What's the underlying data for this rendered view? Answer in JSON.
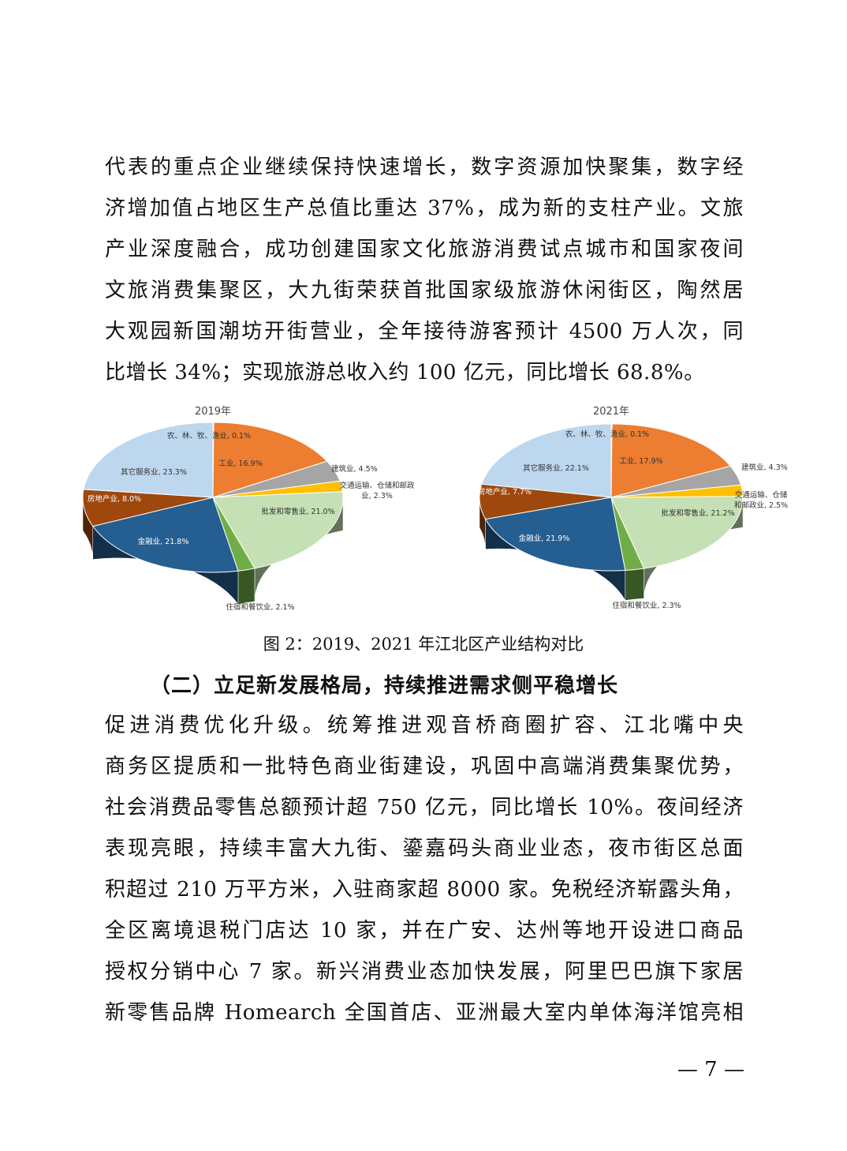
{
  "paragraph1": [
    "代表的重点企业继续保持快速增长，数字资源加快聚集，数字经",
    "济增加值占地区生产总值比重达 37%，成为新的支柱产业。文旅",
    "产业深度融合，成功创建国家文化旅游消费试点城市和国家夜间",
    "文旅消费集聚区，大九街荣获首批国家级旅游休闲街区，陶然居",
    "大观园新国潮坊开街营业，全年接待游客预计 4500 万人次，同",
    "比增长 34%；实现旅游总收入约 100 亿元，同比增长 68.8%。"
  ],
  "chart_data": [
    {
      "type": "pie",
      "title": "2019年",
      "labels": [
        "农、林、牧、渔业, 0.1%",
        "工业, 16.9%",
        "建筑业, 4.5%",
        "交通运输、仓储和邮政业, 2.3%",
        "批发和零售业, 21.0%",
        "住宿和餐饮业, 2.1%",
        "金融业, 21.8%",
        "房地产业, 8.0%",
        "其它服务业, 23.3%"
      ],
      "categories": [
        "农、林、牧、渔业",
        "工业",
        "建筑业",
        "交通运输、仓储和邮政业",
        "批发和零售业",
        "住宿和餐饮业",
        "金融业",
        "房地产业",
        "其它服务业"
      ],
      "values": [
        0.1,
        16.9,
        4.5,
        2.3,
        21.0,
        2.1,
        21.8,
        8.0,
        23.3
      ]
    },
    {
      "type": "pie",
      "title": "2021年",
      "labels": [
        "农、林、牧、渔业, 0.1%",
        "工业, 17.9%",
        "建筑业, 4.3%",
        "交通运输、仓储和邮政业, 2.5%",
        "批发和零售业, 21.2%",
        "住宿和餐饮业, 2.3%",
        "金融业, 21.9%",
        "房地产业, 7.7%",
        "其它服务业, 22.1%"
      ],
      "categories": [
        "农、林、牧、渔业",
        "工业",
        "建筑业",
        "交通运输、仓储和邮政业",
        "批发和零售业",
        "住宿和餐饮业",
        "金融业",
        "房地产业",
        "其它服务业"
      ],
      "values": [
        0.1,
        17.9,
        4.3,
        2.5,
        21.2,
        2.3,
        21.9,
        7.7,
        22.1
      ]
    }
  ],
  "colors": [
    "#5B9BD5",
    "#ED7D31",
    "#A5A5A5",
    "#FFC000",
    "#C5E0B4",
    "#70AD47",
    "#255E91",
    "#9E480E",
    "#BDD7EE"
  ],
  "caption": "图 2：2019、2021 年江北区产业结构对比",
  "heading": "（二）立足新发展格局，持续推进需求侧平稳增长",
  "paragraph2": [
    "促进消费优化升级。统筹推进观音桥商圈扩容、江北嘴中央",
    "商务区提质和一批特色商业街建设，巩固中高端消费集聚优势，",
    "社会消费品零售总额预计超 750 亿元，同比增长 10%。夜间经济",
    "表现亮眼，持续丰富大九街、鎏嘉码头商业业态，夜市街区总面",
    "积超过 210 万平方米，入驻商家超 8000 家。免税经济崭露头角，",
    "全区离境退税门店达 10 家，并在广安、达州等地开设进口商品",
    "授权分销中心 7 家。新兴消费业态加快发展，阿里巴巴旗下家居",
    "新零售品牌 Homearch 全国首店、亚洲最大室内单体海洋馆亮相"
  ],
  "page_number": "— 7 —"
}
